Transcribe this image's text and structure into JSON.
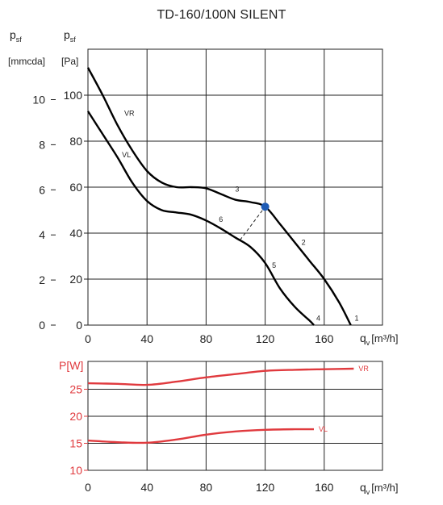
{
  "title": "TD-160/100N SILENT",
  "pressure_chart": {
    "left_axis": {
      "label": "p",
      "sub": "sf",
      "unit": "[mmcda]",
      "ticks": [
        "10",
        "8",
        "6",
        "4",
        "2",
        "0"
      ]
    },
    "right_axis": {
      "label": "p",
      "sub": "sf",
      "unit": "[Pa]",
      "ticks": [
        "100",
        "80",
        "60",
        "40",
        "20",
        "0"
      ]
    },
    "x_label": {
      "label": "q",
      "sub": "v",
      "unit": "[m³/h]"
    }
  },
  "power_chart": {
    "y_label": "P[W]",
    "y_color": "#e03a3e"
  },
  "chart_data": [
    {
      "type": "line",
      "title": "TD-160/100N SILENT",
      "xlabel": "qv [m3/h]",
      "ylabel": "psf [Pa]",
      "secondary_ylabel": "psf [mmcda]",
      "x_ticks": [
        "0",
        "40",
        "80",
        "120",
        "160"
      ],
      "xlim": [
        0,
        200
      ],
      "ylim": [
        0,
        115
      ],
      "grid": true,
      "series": [
        {
          "name": "VR",
          "color": "#000000",
          "x": [
            0,
            10,
            20,
            30,
            40,
            50,
            60,
            70,
            80,
            90,
            100,
            110,
            120,
            130,
            140,
            150,
            160,
            170,
            178
          ],
          "y": [
            112,
            100,
            87,
            76,
            67,
            62,
            60,
            60,
            59.5,
            57,
            54.5,
            53.5,
            51.5,
            44,
            36,
            28,
            20,
            10,
            0
          ]
        },
        {
          "name": "VL",
          "color": "#000000",
          "x": [
            0,
            10,
            20,
            30,
            40,
            50,
            60,
            70,
            80,
            90,
            100,
            110,
            120,
            130,
            140,
            150,
            153
          ],
          "y": [
            93,
            83,
            73,
            62,
            54,
            50,
            49,
            48,
            45.5,
            42,
            38,
            34,
            27,
            16,
            8,
            2,
            0
          ]
        }
      ],
      "annotations": [
        {
          "text": "VR",
          "x": 28,
          "y": 91
        },
        {
          "text": "VL",
          "x": 26,
          "y": 73
        },
        {
          "text": "1",
          "x": 182,
          "y": 2
        },
        {
          "text": "2",
          "x": 146,
          "y": 35
        },
        {
          "text": "3",
          "x": 101,
          "y": 58
        },
        {
          "text": "4",
          "x": 156,
          "y": 2
        },
        {
          "text": "5",
          "x": 126,
          "y": 25
        },
        {
          "text": "6",
          "x": 90,
          "y": 45
        }
      ],
      "operating_point": {
        "x": 120,
        "y": 51.5,
        "color": "#1f5cb5"
      },
      "system_line": {
        "x": [
          103,
          120
        ],
        "y": [
          37,
          51.5
        ]
      }
    },
    {
      "type": "line",
      "xlabel": "qv [m3/h]",
      "ylabel": "P[W]",
      "x_ticks": [
        "0",
        "40",
        "80",
        "120",
        "160"
      ],
      "y_ticks": [
        "10",
        "15",
        "20",
        "25"
      ],
      "xlim": [
        0,
        200
      ],
      "ylim": [
        10,
        30
      ],
      "grid": true,
      "series": [
        {
          "name": "VR",
          "color": "#e03a3e",
          "x": [
            0,
            20,
            40,
            60,
            80,
            100,
            120,
            140,
            160,
            180
          ],
          "y": [
            26.1,
            26.0,
            25.8,
            26.4,
            27.2,
            27.8,
            28.4,
            28.6,
            28.7,
            28.8
          ]
        },
        {
          "name": "VL",
          "color": "#e03a3e",
          "x": [
            0,
            20,
            40,
            60,
            80,
            100,
            120,
            140,
            153
          ],
          "y": [
            15.5,
            15.2,
            15.1,
            15.7,
            16.6,
            17.2,
            17.5,
            17.6,
            17.6
          ]
        }
      ]
    }
  ]
}
